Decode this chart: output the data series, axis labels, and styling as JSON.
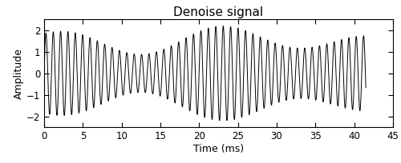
{
  "title": "Denoise signal",
  "xlabel": "Time (ms)",
  "ylabel": "Amplitude",
  "xlim": [
    0,
    45
  ],
  "ylim": [
    -2.5,
    2.5
  ],
  "xticks": [
    0,
    5,
    10,
    15,
    20,
    25,
    30,
    35,
    40,
    45
  ],
  "yticks": [
    -2,
    -1,
    0,
    1,
    2
  ],
  "line_color": "#000000",
  "line_width": 0.7,
  "background_color": "#ffffff",
  "t_end": 41.5,
  "n_points": 8000,
  "f_carrier": 1.05,
  "f_am1": 0.052,
  "f_am2": 0.031,
  "title_fontsize": 11,
  "label_fontsize": 9,
  "tick_fontsize": 8.5
}
